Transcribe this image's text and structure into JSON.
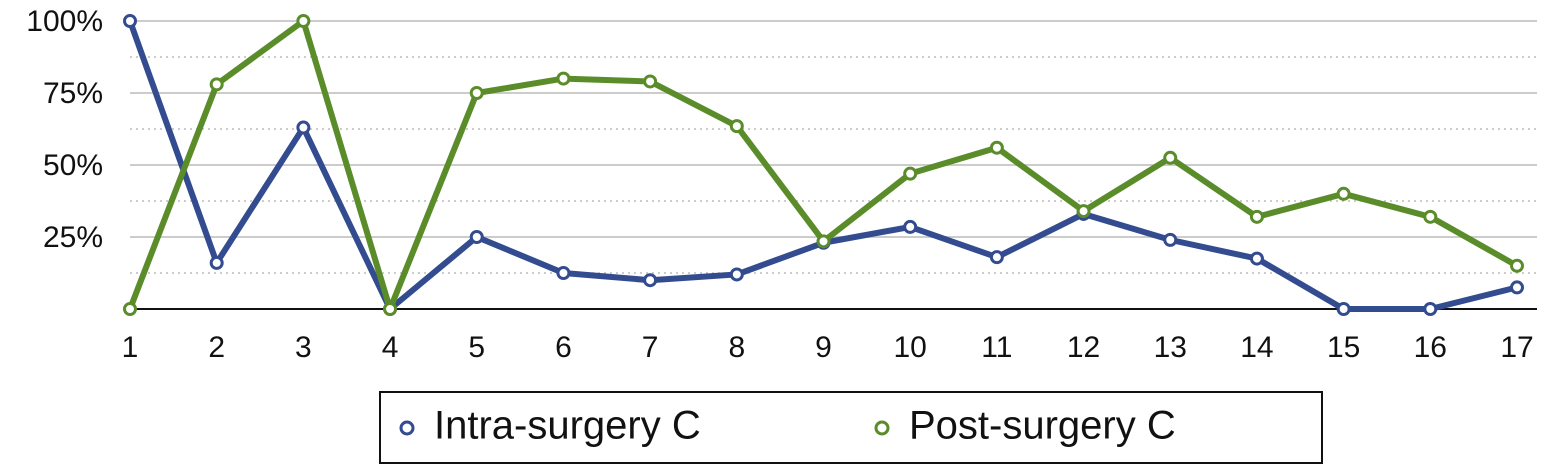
{
  "chart_data": {
    "type": "line",
    "x": [
      1,
      2,
      3,
      4,
      5,
      6,
      7,
      8,
      9,
      10,
      11,
      12,
      13,
      14,
      15,
      16,
      17
    ],
    "xlim": [
      1,
      17
    ],
    "xticks": [
      1,
      2,
      3,
      4,
      5,
      6,
      7,
      8,
      9,
      10,
      11,
      12,
      13,
      14,
      15,
      16,
      17
    ],
    "ylim": [
      0,
      100
    ],
    "yticks": [
      {
        "value": 25,
        "label": "25%"
      },
      {
        "value": 50,
        "label": "50%"
      },
      {
        "value": 75,
        "label": "75%"
      },
      {
        "value": 100,
        "label": "100%"
      }
    ],
    "minor_yticks": [
      12.5,
      37.5,
      62.5,
      87.5
    ],
    "grid": true,
    "legend": "bottom",
    "series": [
      {
        "name": "Intra-surgery C",
        "color": "#334b8f",
        "values": [
          100,
          16,
          63,
          0,
          25,
          12.5,
          10,
          12,
          23,
          28.5,
          18,
          33,
          24,
          17.5,
          0,
          0,
          7.5
        ]
      },
      {
        "name": "Post-surgery C",
        "color": "#5b8c2a",
        "values": [
          0,
          78,
          100,
          0,
          75,
          80,
          79,
          63.5,
          23.5,
          47,
          56,
          34,
          52.5,
          32,
          40,
          32,
          15
        ]
      }
    ]
  }
}
